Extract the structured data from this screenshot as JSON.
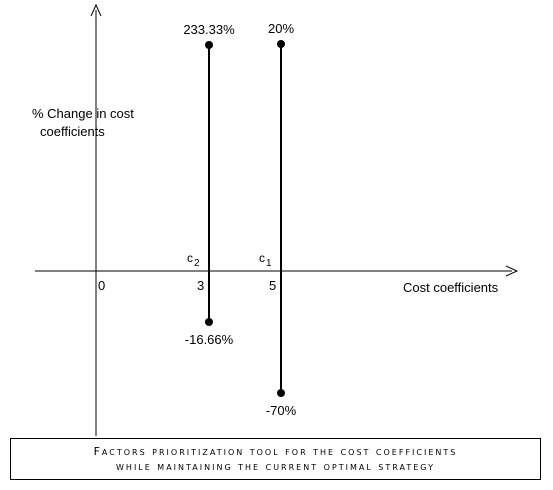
{
  "chart_data": {
    "type": "range",
    "ylabel_line1": "% Change in cost",
    "ylabel_line2": "coefficients",
    "xlabel": "Cost coefficients",
    "origin_label": "0",
    "x_tick_labels": [
      "3",
      "5"
    ],
    "series": [
      {
        "name": "c2",
        "sub": "2",
        "x": 3,
        "upper": 233.33,
        "lower": -16.66,
        "upper_label": "233.33%",
        "lower_label": "-16.66%"
      },
      {
        "name": "c1",
        "sub": "1",
        "x": 5,
        "upper": 20,
        "lower": -70,
        "upper_label": "20%",
        "lower_label": "-70%"
      }
    ]
  },
  "caption": {
    "line1": "Factors prioritization tool for the cost coefficients",
    "line2": "while maintaining the current optimal strategy"
  },
  "colors": {
    "axis": "#000000",
    "marker": "#000000"
  }
}
